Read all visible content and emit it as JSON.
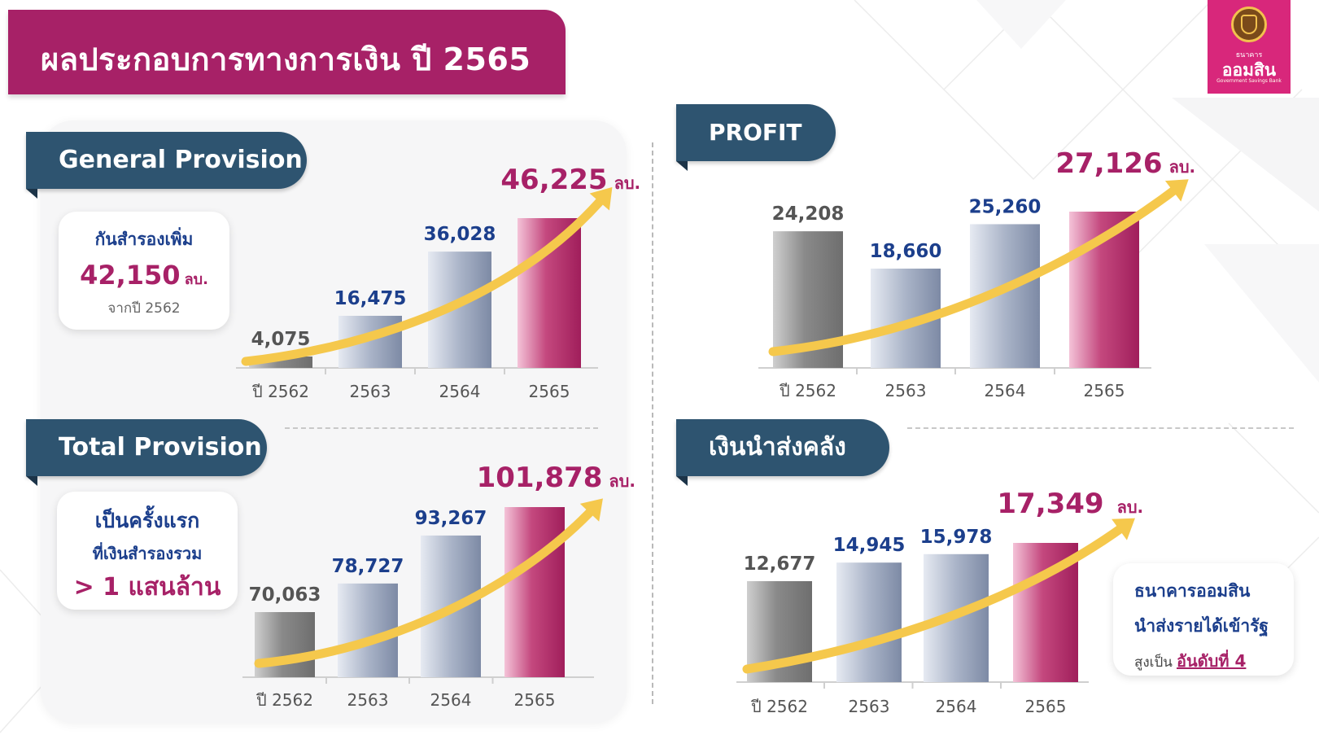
{
  "title": "ผลประกอบการทางการเงิน ปี 2565",
  "logo": {
    "name_small": "ธนาคาร",
    "name": "ออมสิน",
    "english": "Government Savings Bank"
  },
  "colors": {
    "brand_magenta": "#a72167",
    "tab_navy": "#2e5470",
    "value_blue": "#1c3f8c",
    "arrow_yellow": "#f5c84c"
  },
  "unit": "ลบ.",
  "general_provision": {
    "tab_label": "General Provision",
    "info": {
      "line1": "กันสำรองเพิ่ม",
      "value": "42,150",
      "unit": "ลบ.",
      "line3": "จากปี 2562"
    }
  },
  "total_provision": {
    "tab_label": "Total Provision",
    "info": {
      "line1": "เป็นครั้งแรก",
      "line2": "ที่เงินสำรองรวม",
      "line3": "> 1 แสนล้าน"
    }
  },
  "profit": {
    "tab_label": "PROFIT"
  },
  "treasury": {
    "tab_label": "เงินนำส่งคลัง",
    "info": {
      "line1": "ธนาคารออมสิน",
      "line2": "นำส่งรายได้เข้ารัฐ",
      "line3_prefix": "สูงเป็น",
      "line3_highlight": "อันดับที่ 4"
    }
  },
  "chart_data": [
    {
      "type": "bar",
      "title": "General Provision",
      "categories": [
        "ปี 2562",
        "2563",
        "2564",
        "2565"
      ],
      "values": [
        4075,
        16475,
        36028,
        46225
      ],
      "labels": [
        "4,075",
        "16,475",
        "36,028",
        "46,225"
      ]
    },
    {
      "type": "bar",
      "title": "PROFIT",
      "categories": [
        "ปี 2562",
        "2563",
        "2564",
        "2565"
      ],
      "values": [
        24208,
        18660,
        25260,
        27126
      ],
      "labels": [
        "24,208",
        "18,660",
        "25,260",
        "27,126"
      ]
    },
    {
      "type": "bar",
      "title": "Total Provision",
      "categories": [
        "ปี 2562",
        "2563",
        "2564",
        "2565"
      ],
      "values": [
        70063,
        78727,
        93267,
        101878
      ],
      "labels": [
        "70,063",
        "78,727",
        "93,267",
        "101,878"
      ]
    },
    {
      "type": "bar",
      "title": "เงินนำส่งคลัง",
      "categories": [
        "ปี 2562",
        "2563",
        "2564",
        "2565"
      ],
      "values": [
        12677,
        14945,
        15978,
        17349
      ],
      "labels": [
        "12,677",
        "14,945",
        "15,978",
        "17,349"
      ]
    }
  ]
}
